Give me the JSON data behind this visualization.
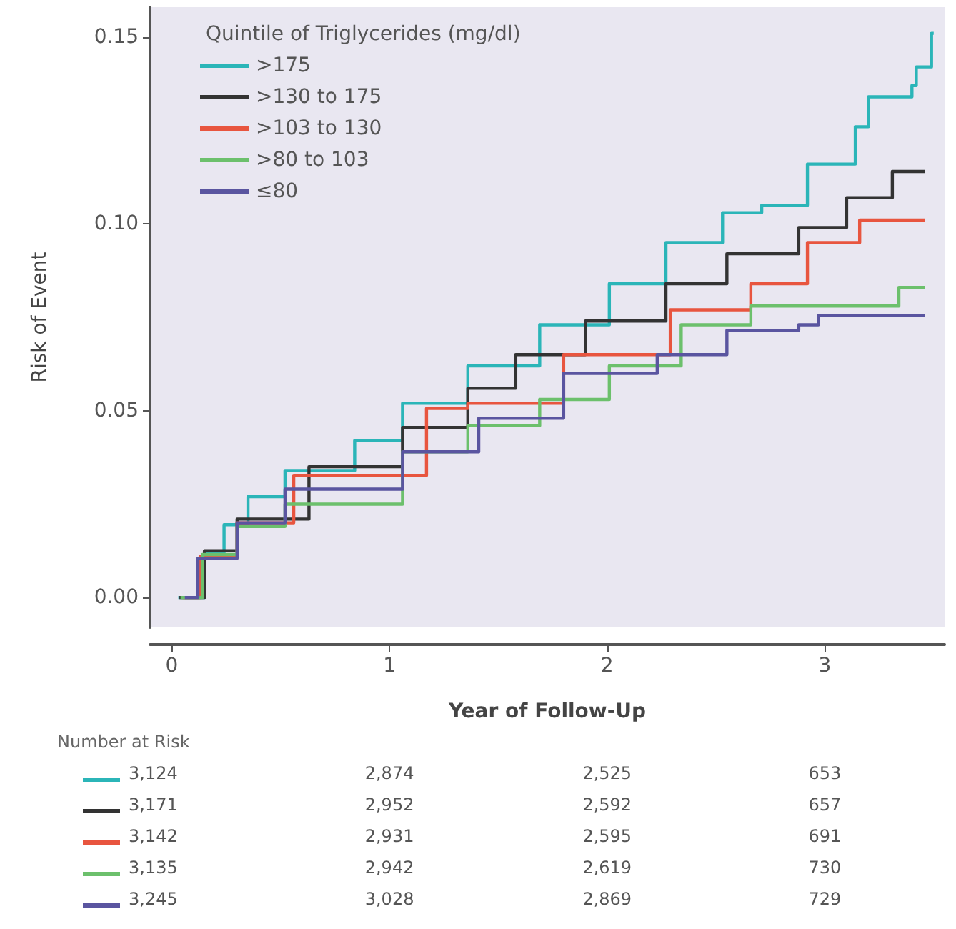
{
  "chart_data": {
    "type": "step",
    "xlabel": "Year of Follow-Up",
    "ylabel": "Risk of Event",
    "legend_title": "Quintile of Triglycerides (mg/dl)",
    "legend": "top left",
    "grid": false,
    "marker": "none",
    "line_style": "solid",
    "xlim": [
      -0.1,
      3.55
    ],
    "xticks": [
      0,
      1,
      2,
      3
    ],
    "ylim": [
      -0.008,
      0.158
    ],
    "yticks": [
      {
        "value": 0,
        "label": "0.00"
      },
      {
        "value": 0.05,
        "label": "0.05"
      },
      {
        "value": 0.1,
        "label": "0.10"
      },
      {
        "value": 0.15,
        "label": "0.15"
      }
    ],
    "series": [
      {
        "name": ">175",
        "color": "#2bb5b8",
        "x": [
          0.03,
          0.15,
          0.24,
          0.35,
          0.52,
          0.84,
          1.06,
          1.36,
          1.69,
          2.01,
          2.27,
          2.53,
          2.71,
          2.92,
          3.14,
          3.2,
          3.4,
          3.42,
          3.49,
          3.5
        ],
        "values": [
          0,
          0.012,
          0.0195,
          0.027,
          0.034,
          0.042,
          0.052,
          0.062,
          0.073,
          0.084,
          0.095,
          0.103,
          0.105,
          0.116,
          0.126,
          0.134,
          0.137,
          0.142,
          0.151,
          0.151
        ]
      },
      {
        "name": ">130 to 175",
        "color": "#333333",
        "x": [
          0.035,
          0.15,
          0.3,
          0.63,
          1.06,
          1.36,
          1.58,
          1.9,
          2.27,
          2.55,
          2.88,
          3.1,
          3.25,
          3.31,
          3.46
        ],
        "values": [
          0,
          0.0125,
          0.021,
          0.035,
          0.0455,
          0.056,
          0.065,
          0.074,
          0.084,
          0.092,
          0.099,
          0.107,
          0.107,
          0.114,
          0.114
        ]
      },
      {
        "name": ">103 to 130",
        "color": "#e8553f",
        "x": [
          0.05,
          0.13,
          0.3,
          0.56,
          1.17,
          1.36,
          1.8,
          2.29,
          2.66,
          2.92,
          3.16,
          3.46
        ],
        "values": [
          0,
          0.011,
          0.02,
          0.0327,
          0.0506,
          0.052,
          0.065,
          0.077,
          0.084,
          0.095,
          0.101,
          0.101
        ]
      },
      {
        "name": ">80 to 103",
        "color": "#6cc06c",
        "x": [
          0.04,
          0.14,
          0.3,
          0.52,
          1.06,
          1.36,
          1.69,
          2.01,
          2.34,
          2.66,
          3.33,
          3.34,
          3.46
        ],
        "values": [
          0,
          0.0115,
          0.019,
          0.025,
          0.039,
          0.046,
          0.053,
          0.062,
          0.073,
          0.078,
          0.078,
          0.083,
          0.083
        ]
      },
      {
        "name": "≤80",
        "color": "#5a55a0",
        "x": [
          0.06,
          0.12,
          0.3,
          0.52,
          1.06,
          1.41,
          1.8,
          2.23,
          2.55,
          2.88,
          2.97,
          3.46
        ],
        "values": [
          0,
          0.0105,
          0.02,
          0.029,
          0.039,
          0.048,
          0.06,
          0.065,
          0.0715,
          0.073,
          0.0755,
          0.0755
        ]
      }
    ],
    "annotations": [
      "Number at Risk",
      "3,124",
      "2,874",
      "2,525",
      "653",
      "3,171",
      "2,952",
      "2,592",
      "657",
      "3,142",
      "2,931",
      "2,595",
      "691",
      "3,135",
      "2,942",
      "2,619",
      "730",
      "3,245",
      "3,028",
      "2,869",
      "729"
    ]
  }
}
